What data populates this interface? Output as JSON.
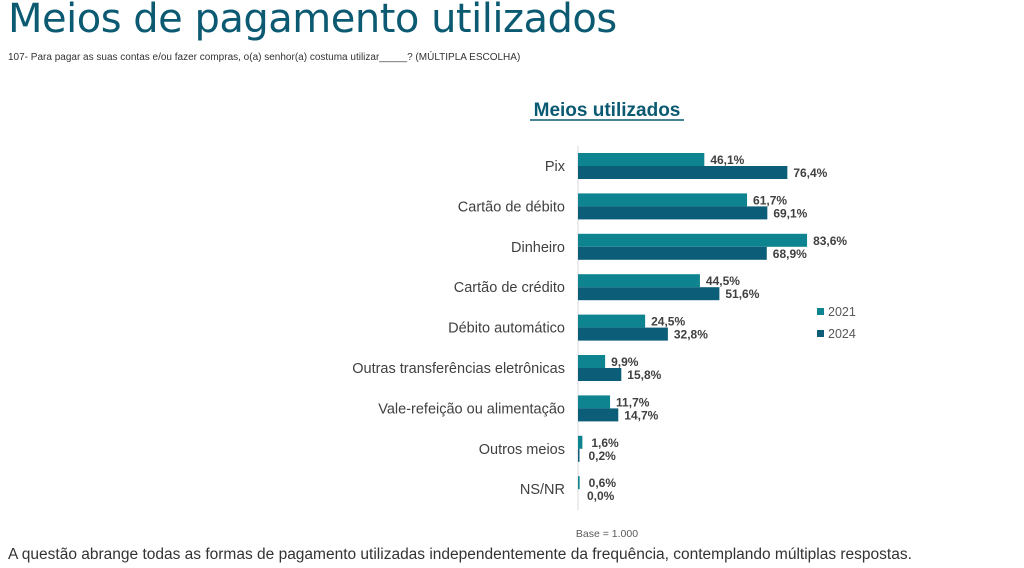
{
  "page": {
    "title": "Meios de pagamento utilizados",
    "question": "107- Para pagar as suas contas e/ou fazer compras, o(a) senhor(a) costuma utilizar_____? (MÚLTIPLA ESCOLHA)",
    "footnote": "A questão abrange todas as formas de pagamento utilizadas independentemente da frequência, contemplando múltiplas respostas."
  },
  "chart_data": {
    "type": "bar",
    "orientation": "horizontal",
    "title": "Meios utilizados",
    "categories": [
      "Pix",
      "Cartão de débito",
      "Dinheiro",
      "Cartão de crédito",
      "Débito automático",
      "Outras transferências eletrônicas",
      "Vale-refeição ou alimentação",
      "Outros meios",
      "NS/NR"
    ],
    "series": [
      {
        "name": "2021",
        "color": "#0e8491",
        "values": [
          46.1,
          61.7,
          83.6,
          44.5,
          24.5,
          9.9,
          11.7,
          1.6,
          0.6
        ],
        "labels": [
          "46,1%",
          "61,7%",
          "83,6%",
          "44,5%",
          "24,5%",
          "9,9%",
          "11,7%",
          "1,6%",
          "0,6%"
        ]
      },
      {
        "name": "2024",
        "color": "#0b5d78",
        "values": [
          76.4,
          69.1,
          68.9,
          51.6,
          32.8,
          15.8,
          14.7,
          0.2,
          0.0
        ],
        "labels": [
          "76,4%",
          "69,1%",
          "68,9%",
          "51,6%",
          "32,8%",
          "15,8%",
          "14,7%",
          "0,2%",
          "0,0%"
        ]
      }
    ],
    "legend": "right",
    "base_note": "Base = 1.000",
    "xlim": [
      0,
      100
    ],
    "grid": false
  }
}
